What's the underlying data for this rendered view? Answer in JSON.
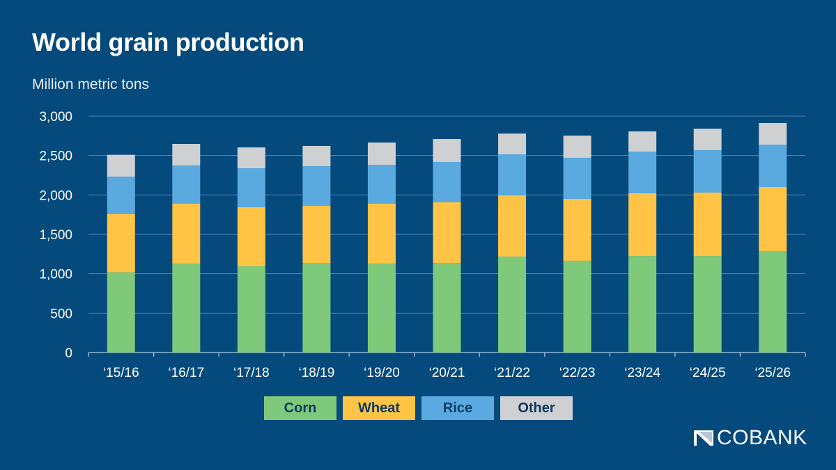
{
  "chart_data": {
    "type": "bar",
    "stacked": true,
    "title": "World grain production",
    "subtitle": "Million metric tons",
    "xlabel": "",
    "ylabel": "",
    "ylim": [
      0,
      3000
    ],
    "yticks": [
      0,
      500,
      1000,
      1500,
      2000,
      2500,
      3000
    ],
    "ytick_labels": [
      "0",
      "500",
      "1,000",
      "1,500",
      "2,000",
      "2,500",
      "3,000"
    ],
    "grid": true,
    "legend_position": "bottom",
    "categories": [
      "‘15/16",
      "‘16/17",
      "‘17/18",
      "‘18/19",
      "‘19/20",
      "‘20/21",
      "‘21/22",
      "‘22/23",
      "‘23/24",
      "‘24/25",
      "‘25/26"
    ],
    "series": [
      {
        "name": "Corn",
        "color": "#7fc97a",
        "values": [
          1017,
          1129,
          1094,
          1138,
          1129,
          1138,
          1218,
          1165,
          1226,
          1226,
          1288
        ]
      },
      {
        "name": "Wheat",
        "color": "#ffc445",
        "values": [
          742,
          759,
          750,
          724,
          759,
          768,
          776,
          785,
          795,
          803,
          812
        ]
      },
      {
        "name": "Rice",
        "color": "#5aaae0",
        "values": [
          473,
          486,
          494,
          503,
          494,
          512,
          521,
          521,
          529,
          539,
          538
        ]
      },
      {
        "name": "Other",
        "color": "#cfd0d2",
        "values": [
          277,
          273,
          265,
          256,
          283,
          291,
          264,
          282,
          256,
          273,
          274
        ]
      }
    ]
  },
  "logo": {
    "text": "COBANK"
  }
}
